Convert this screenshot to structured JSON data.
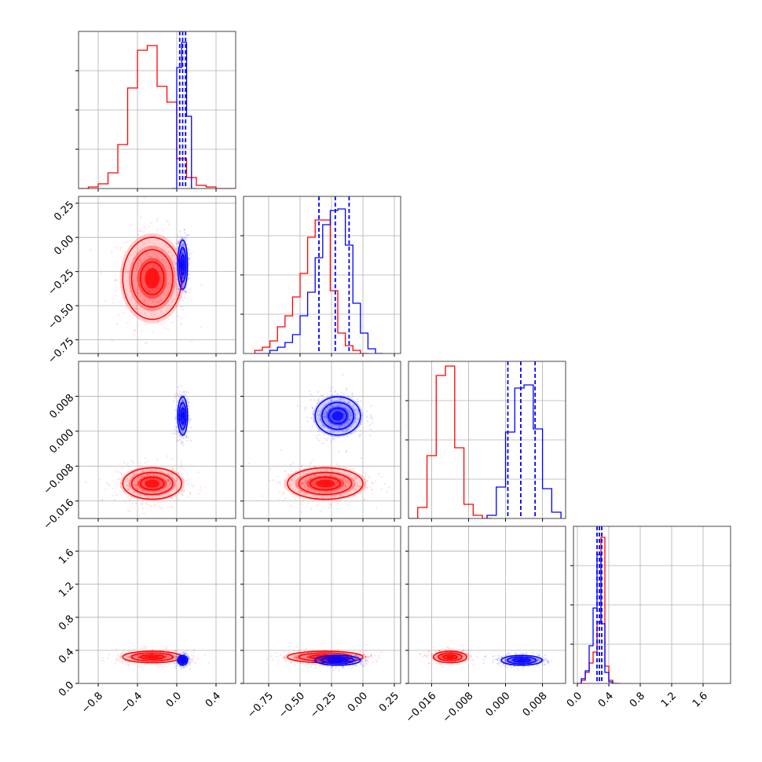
{
  "chart_data": {
    "type": "corner",
    "n_params": 4,
    "grid": true,
    "colors": {
      "red": "#ff0000",
      "blue": "#0000ff",
      "grid": "#b0b0b0",
      "axes": "#000000"
    },
    "series": [
      {
        "color": "#ff0000",
        "means": [
          -0.25,
          -0.3,
          -0.012,
          0.32
        ],
        "sds": [
          0.15,
          0.15,
          0.0018,
          0.035
        ],
        "hist_1d": [
          {
            "bin_edges": [
              -1.0,
              -0.9,
              -0.8,
              -0.7,
              -0.6,
              -0.5,
              -0.4,
              -0.3,
              -0.2,
              -0.1,
              0.0,
              0.1,
              0.2,
              0.3,
              0.4,
              0.5,
              0.6
            ],
            "counts": [
              0.0,
              0.01,
              0.03,
              0.1,
              0.28,
              0.64,
              0.88,
              0.91,
              0.65,
              0.55,
              0.19,
              0.07,
              0.02,
              0.01,
              0.0,
              0.0
            ]
          },
          {
            "bin_edges": [
              -0.86,
              -0.8,
              -0.74,
              -0.68,
              -0.62,
              -0.56,
              -0.5,
              -0.44,
              -0.38,
              -0.32,
              -0.26,
              -0.2,
              -0.14,
              -0.08,
              -0.02,
              0.04
            ],
            "counts": [
              0.02,
              0.04,
              0.08,
              0.17,
              0.24,
              0.36,
              0.51,
              0.74,
              0.85,
              0.85,
              0.4,
              0.13,
              0.05,
              0.02,
              0.0
            ]
          },
          {
            "bin_edges": [
              -0.021,
              -0.019,
              -0.017,
              -0.015,
              -0.013,
              -0.011,
              -0.009,
              -0.007,
              -0.005,
              -0.003
            ],
            "counts": [
              0.0,
              0.07,
              0.4,
              0.91,
              0.97,
              0.45,
              0.09,
              0.02,
              0.0
            ]
          },
          {
            "bin_edges": [
              0.0,
              0.05,
              0.1,
              0.15,
              0.2,
              0.25,
              0.3,
              0.35,
              0.4,
              0.45,
              0.5,
              0.55
            ],
            "counts": [
              0.0,
              0.02,
              0.07,
              0.13,
              0.2,
              0.39,
              0.93,
              0.11,
              0.02,
              0.0,
              0.0
            ]
          }
        ]
      },
      {
        "color": "#0000ff",
        "means": [
          0.06,
          -0.2,
          0.0035,
          0.28
        ],
        "sds": [
          0.025,
          0.09,
          0.0022,
          0.03
        ],
        "quantiles_dashed": [
          [
            0.03,
            0.06,
            0.09
          ],
          [
            -0.35,
            -0.22,
            -0.11
          ],
          [
            0.0005,
            0.0033,
            0.0064
          ],
          [
            0.25,
            0.28,
            0.31
          ]
        ],
        "hist_1d": [
          {
            "bin_edges": [
              -0.05,
              0.0,
              0.05,
              0.1,
              0.15,
              0.2
            ],
            "counts": [
              0.0,
              0.77,
              0.93,
              0.46,
              0.0
            ]
          },
          {
            "bin_edges": [
              -0.86,
              -0.8,
              -0.74,
              -0.68,
              -0.62,
              -0.56,
              -0.5,
              -0.44,
              -0.38,
              -0.32,
              -0.26,
              -0.2,
              -0.14,
              -0.08,
              -0.02,
              0.04,
              0.1,
              0.16
            ],
            "counts": [
              0.0,
              0.0,
              0.02,
              0.04,
              0.07,
              0.12,
              0.24,
              0.39,
              0.61,
              0.82,
              0.91,
              0.92,
              0.69,
              0.32,
              0.13,
              0.03,
              0.0
            ]
          },
          {
            "bin_edges": [
              -0.004,
              -0.002,
              0.0,
              0.002,
              0.004,
              0.006,
              0.008,
              0.01,
              0.012
            ],
            "counts": [
              0.02,
              0.2,
              0.55,
              0.83,
              0.85,
              0.57,
              0.19,
              0.04
            ]
          },
          {
            "bin_edges": [
              0.0,
              0.05,
              0.1,
              0.15,
              0.2,
              0.25,
              0.3,
              0.35,
              0.4,
              0.45,
              0.5
            ],
            "counts": [
              0.0,
              0.03,
              0.08,
              0.24,
              0.48,
              0.82,
              0.38,
              0.07,
              0.01,
              0.0
            ]
          }
        ]
      }
    ],
    "panels": [
      {
        "row": 0,
        "col": 0,
        "kind": "hist",
        "xlim": [
          -1.0,
          0.6
        ],
        "xticks": [
          -0.8,
          -0.4,
          0.0,
          0.4
        ]
      },
      {
        "row": 1,
        "col": 0,
        "kind": "scatter",
        "xlim": [
          -1.0,
          0.6
        ],
        "ylim": [
          -0.85,
          0.3
        ],
        "xticks": [
          -0.8,
          -0.4,
          0.0,
          0.4
        ],
        "yticks": [
          0.25,
          0.0,
          -0.25,
          -0.5,
          -0.75
        ]
      },
      {
        "row": 1,
        "col": 1,
        "kind": "hist",
        "xlim": [
          -0.95,
          0.3
        ],
        "xticks": [
          -0.75,
          -0.5,
          -0.25,
          0.0,
          0.25
        ]
      },
      {
        "row": 2,
        "col": 0,
        "kind": "scatter",
        "xlim": [
          -1.0,
          0.6
        ],
        "ylim": [
          -0.02,
          0.016
        ],
        "xticks": [
          -0.8,
          -0.4,
          0.0,
          0.4
        ],
        "yticks": [
          0.008,
          0.0,
          -0.008,
          -0.016
        ]
      },
      {
        "row": 2,
        "col": 1,
        "kind": "scatter",
        "xlim": [
          -0.95,
          0.3
        ],
        "ylim": [
          -0.02,
          0.016
        ],
        "xticks": [
          -0.75,
          -0.5,
          -0.25,
          0.0,
          0.25
        ],
        "yticks": [
          0.008,
          0.0,
          -0.008,
          -0.016
        ]
      },
      {
        "row": 2,
        "col": 2,
        "kind": "hist",
        "xlim": [
          -0.021,
          0.013
        ],
        "xticks": [
          -0.016,
          -0.008,
          0.0,
          0.008
        ]
      },
      {
        "row": 3,
        "col": 0,
        "kind": "scatter",
        "xlim": [
          -1.0,
          0.6
        ],
        "ylim": [
          0.0,
          1.9
        ],
        "xticks": [
          -0.8,
          -0.4,
          0.0,
          0.4
        ],
        "yticks": [
          1.6,
          1.2,
          0.8,
          0.4,
          0.0
        ]
      },
      {
        "row": 3,
        "col": 1,
        "kind": "scatter",
        "xlim": [
          -0.95,
          0.3
        ],
        "ylim": [
          0.0,
          1.9
        ],
        "xticks": [
          -0.75,
          -0.5,
          -0.25,
          0.0,
          0.25
        ],
        "yticks": [
          1.6,
          1.2,
          0.8,
          0.4,
          0.0
        ]
      },
      {
        "row": 3,
        "col": 2,
        "kind": "scatter",
        "xlim": [
          -0.021,
          0.013
        ],
        "ylim": [
          0.0,
          1.9
        ],
        "xticks": [
          -0.016,
          -0.008,
          0.0,
          0.008
        ],
        "yticks": [
          1.6,
          1.2,
          0.8,
          0.4,
          0.0
        ]
      },
      {
        "row": 3,
        "col": 3,
        "kind": "hist",
        "xlim": [
          -0.05,
          1.95
        ],
        "xticks": [
          0.0,
          0.4,
          0.8,
          1.2,
          1.6
        ]
      }
    ],
    "x_tick_labels": [
      [
        "−0.8",
        "−0.4",
        "0.0",
        "0.4"
      ],
      [
        "−0.75",
        "−0.50",
        "−0.25",
        "0.00",
        "0.25"
      ],
      [
        "−0.016",
        "−0.008",
        "0.000",
        "0.008"
      ],
      [
        "0.0",
        "0.4",
        "0.8",
        "1.2",
        "1.6"
      ]
    ],
    "y_tick_labels": [
      [],
      [
        "0.25",
        "0.00",
        "−0.25",
        "−0.50",
        "−0.75"
      ],
      [
        "0.008",
        "0.000",
        "−0.008",
        "−0.016"
      ],
      [
        "1.6",
        "1.2",
        "0.8",
        "0.4",
        "0.0"
      ]
    ]
  }
}
